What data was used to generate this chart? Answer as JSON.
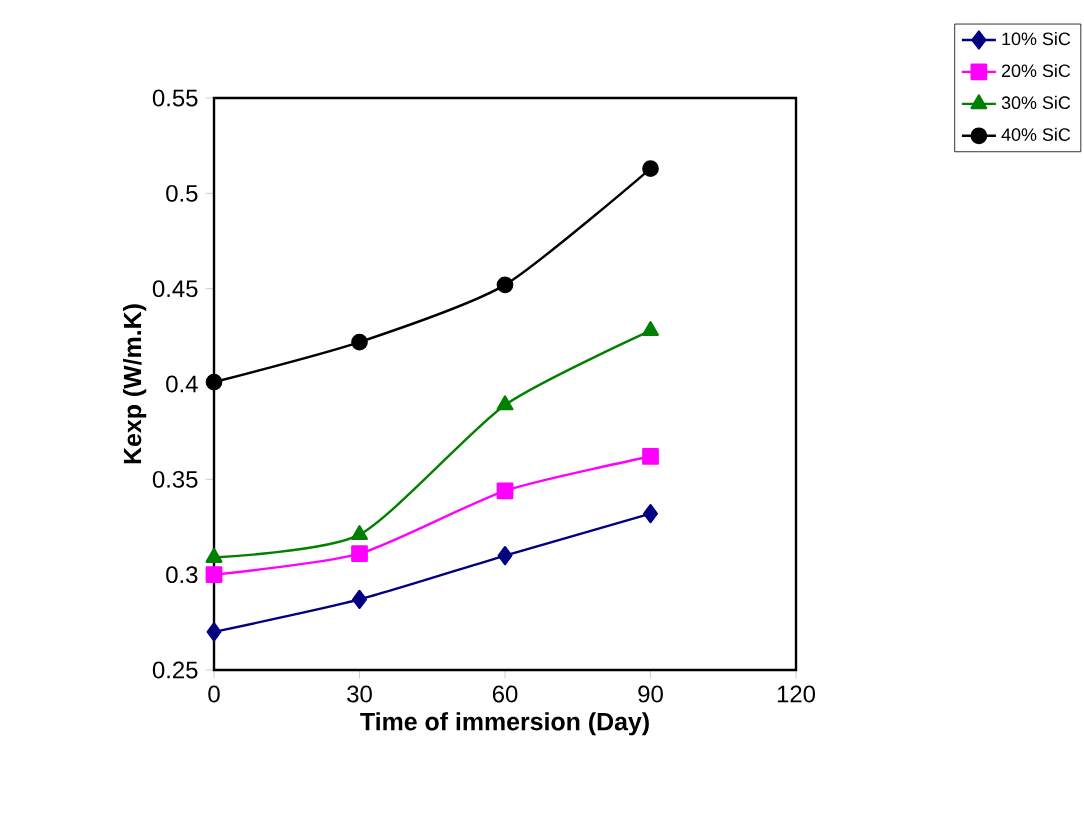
{
  "chart_data": {
    "type": "line",
    "xlabel": "Time of immersion (Day)",
    "ylabel": "Kexp (W/m.K)",
    "x": [
      0,
      30,
      60,
      90
    ],
    "series": [
      {
        "name": "10% SiC",
        "color": "#000080",
        "marker": "diamond",
        "values": [
          0.27,
          0.287,
          0.31,
          0.332
        ]
      },
      {
        "name": "20% SiC",
        "color": "#ff00ff",
        "marker": "square",
        "values": [
          0.3,
          0.311,
          0.344,
          0.362
        ]
      },
      {
        "name": "30% SiC",
        "color": "#008000",
        "marker": "triangle",
        "values": [
          0.309,
          0.321,
          0.389,
          0.428
        ]
      },
      {
        "name": "40% SiC",
        "color": "#000000",
        "marker": "circle",
        "values": [
          0.401,
          0.422,
          0.452,
          0.513
        ]
      }
    ],
    "xlim": [
      0,
      120
    ],
    "xticks": [
      0,
      30,
      60,
      90,
      120
    ],
    "ylim": [
      0.25,
      0.55
    ],
    "yticks": [
      0.25,
      0.3,
      0.35,
      0.4,
      0.45,
      0.5,
      0.55
    ],
    "legend": "top right",
    "grid": false
  }
}
